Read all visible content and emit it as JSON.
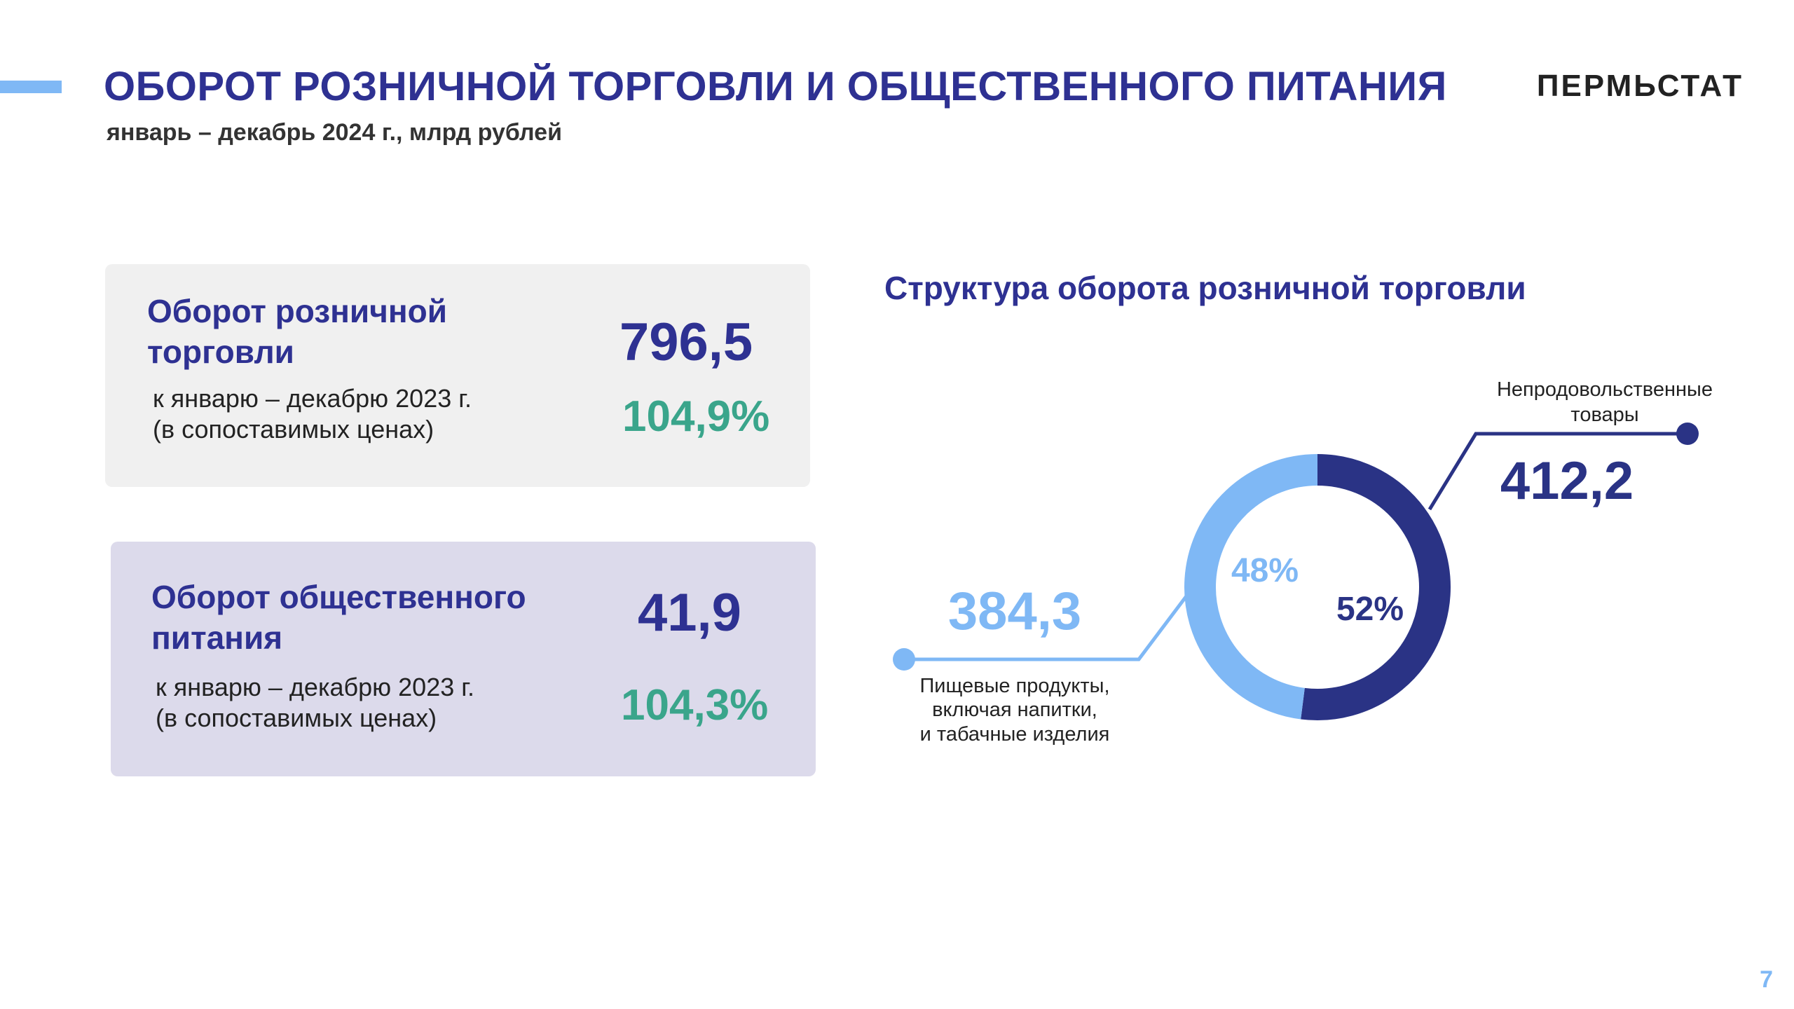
{
  "header": {
    "title": "ОБОРОТ РОЗНИЧНОЙ ТОРГОВЛИ И ОБЩЕСТВЕННОГО ПИТАНИЯ",
    "subtitle": "январь – декабрь 2024 г., млрд рублей",
    "brand": "ПЕРМЬСТАТ"
  },
  "cards": {
    "retail": {
      "title_line1": "Оборот розничной",
      "title_line2": "торговли",
      "value": "796,5",
      "note_line1": "к январю – декабрю 2023 г.",
      "note_line2": "(в сопоставимых ценах)",
      "percent": "104,9%"
    },
    "food_service": {
      "title_line1": "Оборот общественного",
      "title_line2": "питания",
      "value": "41,9",
      "note_line1": "к январю – декабрю 2023 г.",
      "note_line2": "(в сопоставимых ценах)",
      "percent": "104,3%"
    }
  },
  "chart_data": {
    "type": "pie",
    "donut": true,
    "title": "Структура оборота розничной торговли",
    "slices": [
      {
        "key": "food",
        "label_lines": [
          "Пищевые продукты,",
          "включая напитки,",
          "и табачные изделия"
        ],
        "value_text": "384,3",
        "value": 384.3,
        "percent": 48,
        "percent_text": "48%",
        "color": "#7fb8f5"
      },
      {
        "key": "nonfood",
        "label_lines": [
          "Непродовольственные",
          "товары"
        ],
        "value_text": "412,2",
        "value": 412.2,
        "percent": 52,
        "percent_text": "52%",
        "color": "#2a3385"
      }
    ]
  },
  "footer": {
    "page_number": "7"
  },
  "colors": {
    "primary": "#2e3192",
    "accent": "#7fb8f5",
    "dark_slice": "#2a3385",
    "positive": "#3aa58b"
  }
}
